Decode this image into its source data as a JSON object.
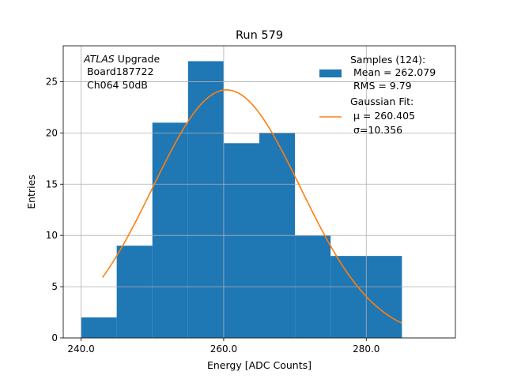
{
  "chart_data": {
    "type": "histogram",
    "title": "Run 579",
    "xlabel": "Energy [ADC Counts]",
    "ylabel": "Entries",
    "xlim": [
      237.5,
      292.5
    ],
    "ylim": [
      0,
      28.5
    ],
    "xticks": [
      240,
      260,
      280
    ],
    "xtick_labels": [
      "240.0",
      "260.0",
      "280.0"
    ],
    "yticks": [
      0,
      5,
      10,
      15,
      20,
      25
    ],
    "ytick_labels": [
      "0",
      "5",
      "10",
      "15",
      "20",
      "25"
    ],
    "grid": true,
    "bins": {
      "edges": [
        240,
        245,
        250,
        255,
        260,
        265,
        270,
        275,
        280,
        285
      ],
      "counts": [
        2,
        9,
        21,
        27,
        19,
        20,
        10,
        8,
        8
      ],
      "color": "#1f77b4"
    },
    "fit": {
      "type": "gaussian",
      "mu": 260.405,
      "sigma": 10.356,
      "x_range": [
        243,
        285
      ],
      "peak": 24.2,
      "color": "#ff7f0e"
    },
    "legend": {
      "placement": "upper-right",
      "entries": [
        {
          "lines": [
            "Samples (124):",
            " Mean = 262.079",
            " RMS = 9.79"
          ],
          "kind": "patch",
          "color": "#1f77b4"
        },
        {
          "lines": [
            "Gaussian Fit:",
            " μ = 260.405",
            " σ=10.356"
          ],
          "kind": "line",
          "color": "#ff7f0e"
        }
      ]
    },
    "annotation": {
      "placement": "upper-left",
      "italic": "ATLAS",
      "rest": " Upgrade",
      "lines": [
        " Board187722",
        " Ch064 50dB"
      ]
    }
  }
}
